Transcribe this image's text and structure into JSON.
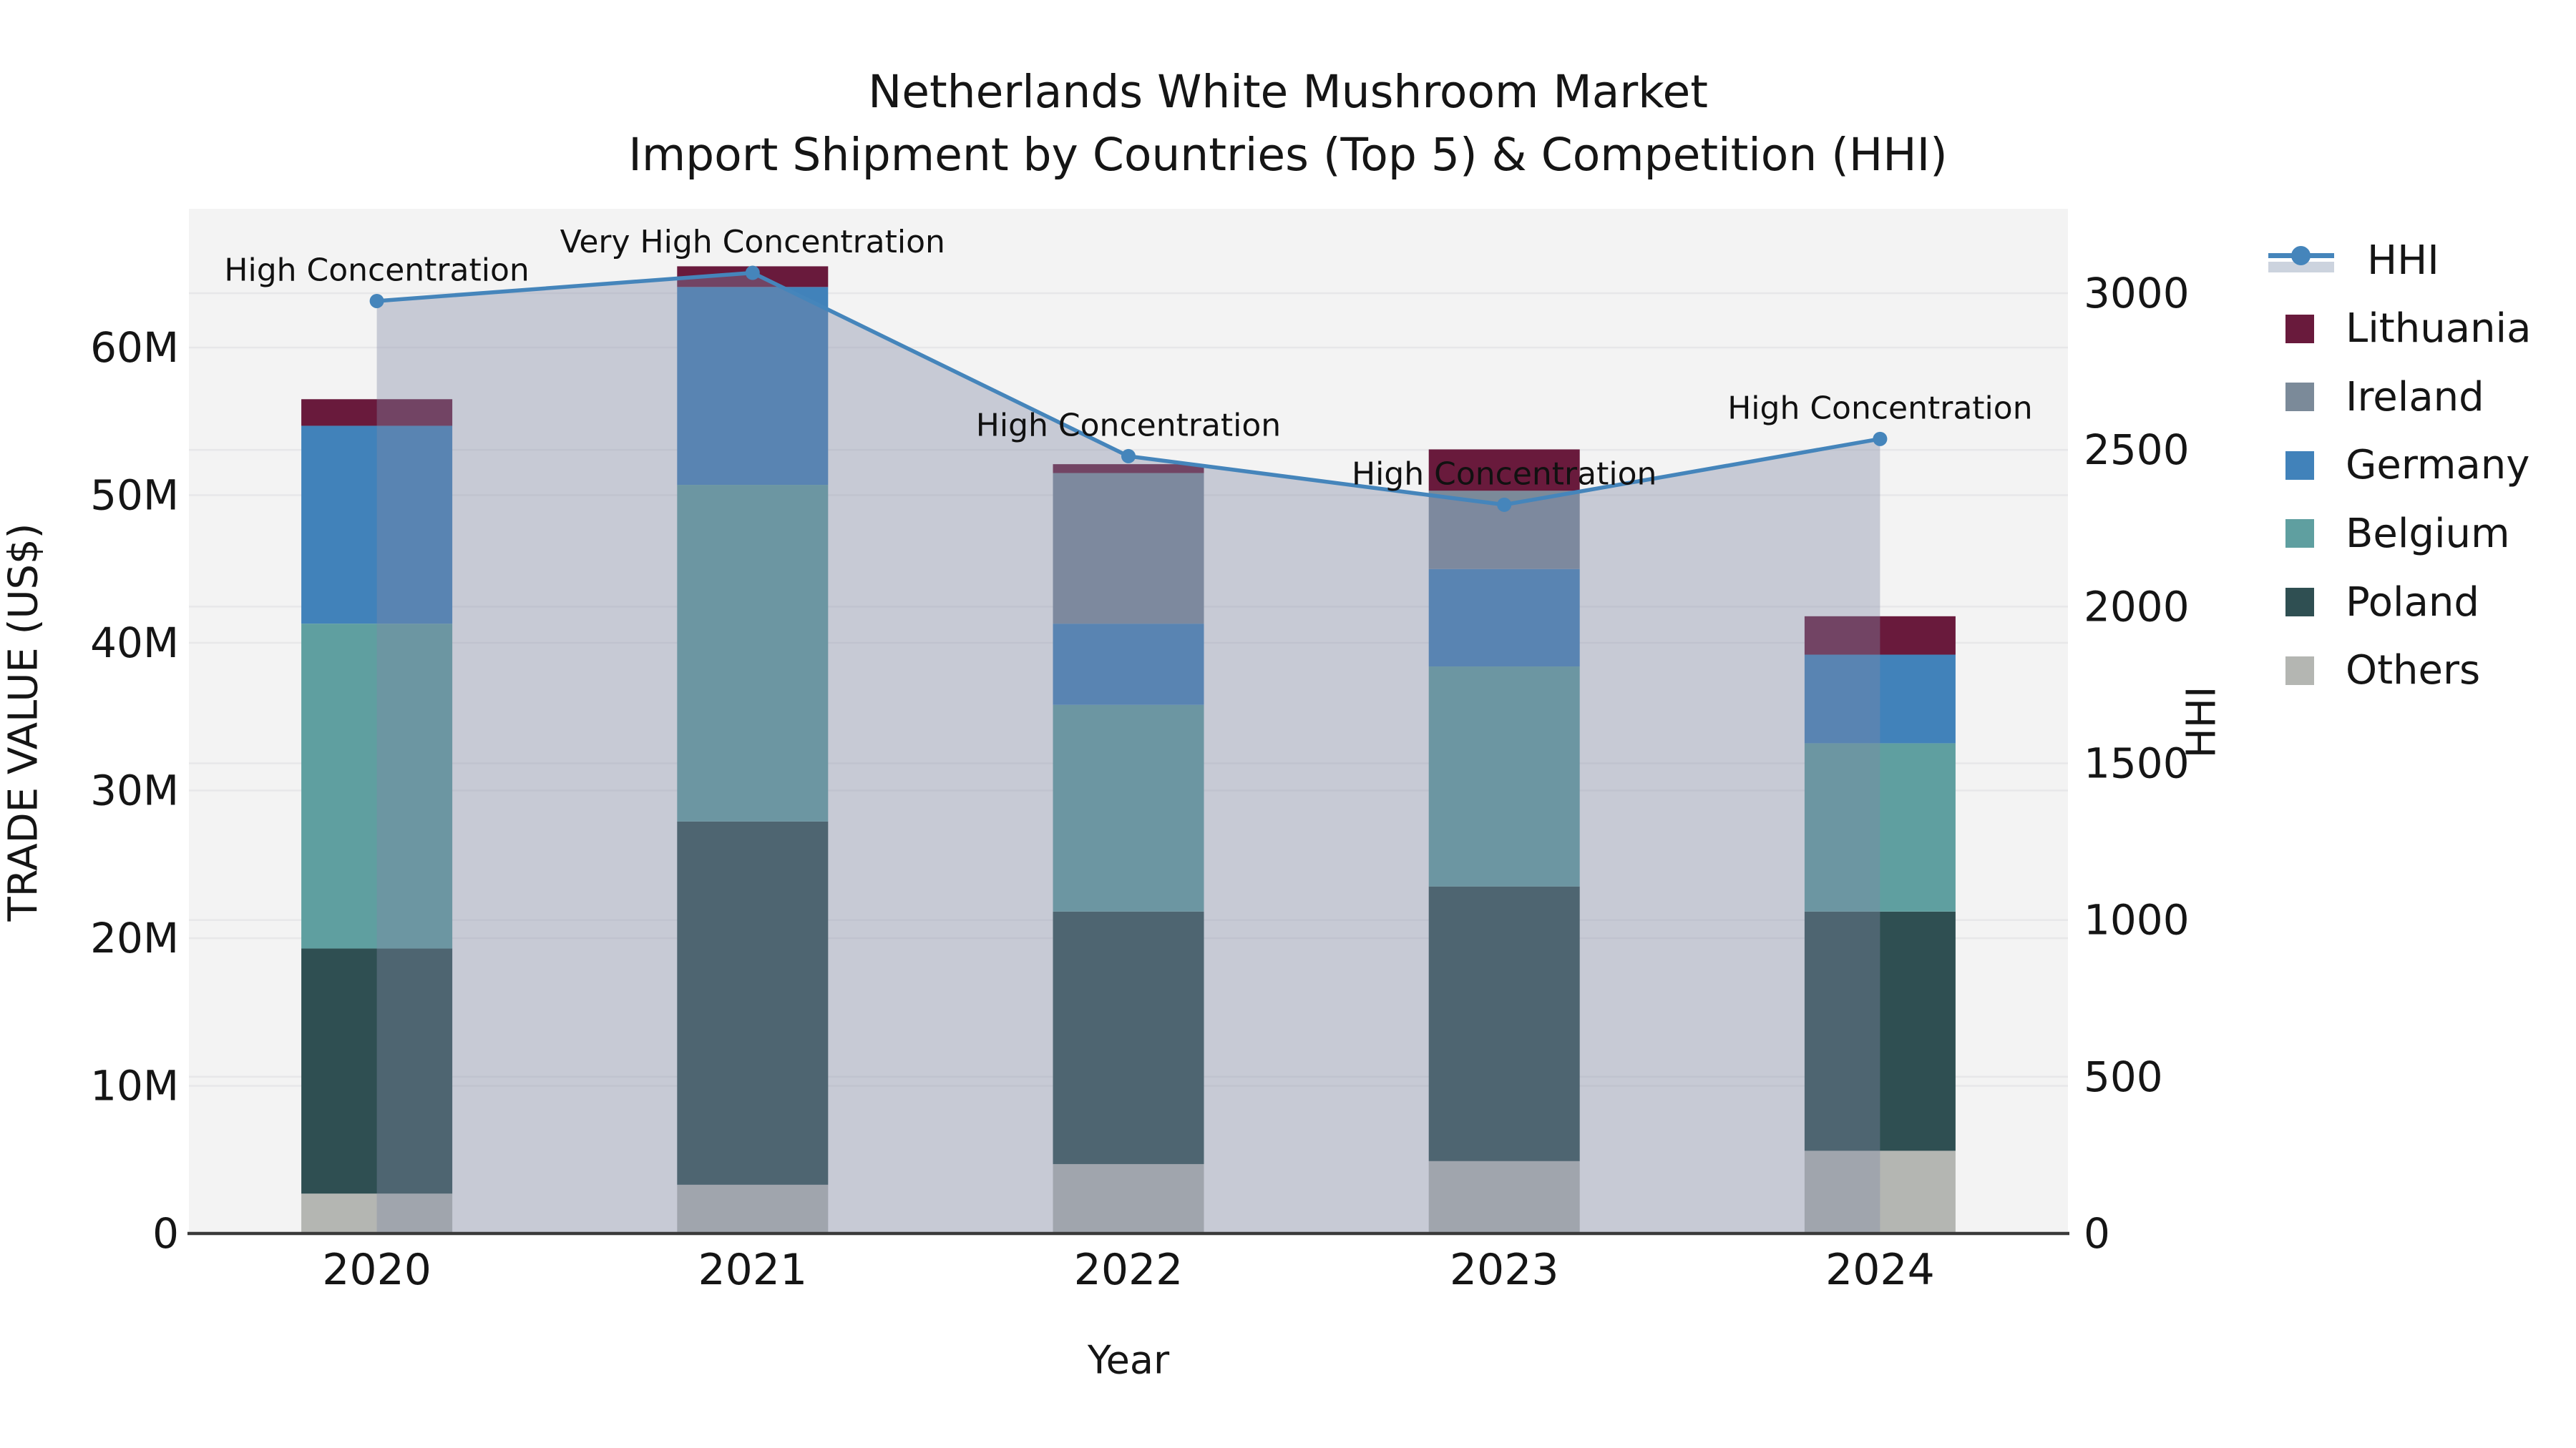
{
  "title": {
    "line1": "Netherlands White Mushroom Market",
    "line2": "Import Shipment by Countries (Top 5) & Competition (HHI)"
  },
  "axes": {
    "y_left": {
      "label": "TRADE VALUE (US$)",
      "ticks": [
        "0",
        "10M",
        "20M",
        "30M",
        "40M",
        "50M",
        "60M"
      ],
      "tick_values": [
        0,
        10,
        20,
        30,
        40,
        50,
        60
      ]
    },
    "y_right": {
      "label": "HHI",
      "ticks": [
        "0",
        "500",
        "1000",
        "1500",
        "2000",
        "2500",
        "3000"
      ],
      "tick_values": [
        0,
        500,
        1000,
        1500,
        2000,
        2500,
        3000
      ]
    },
    "x": {
      "label": "Year"
    }
  },
  "legend": {
    "items": [
      {
        "label": "HHI",
        "type": "line",
        "color": "#4585bb",
        "band_color": "#ccd3de"
      },
      {
        "label": "Lithuania",
        "type": "square",
        "color": "#691a3c"
      },
      {
        "label": "Ireland",
        "type": "square",
        "color": "#7b8a99"
      },
      {
        "label": "Germany",
        "type": "square",
        "color": "#4182ba"
      },
      {
        "label": "Belgium",
        "type": "square",
        "color": "#5f9fa0"
      },
      {
        "label": "Poland",
        "type": "square",
        "color": "#2f4f52"
      },
      {
        "label": "Others",
        "type": "square",
        "color": "#b4b6b2"
      }
    ]
  },
  "chart_data": {
    "type": "bar",
    "subtype": "stacked-bars-with-line-area",
    "categories": [
      "2020",
      "2021",
      "2022",
      "2023",
      "2024"
    ],
    "series": [
      {
        "name": "Others",
        "color": "#b4b6b2",
        "values": [
          2.7,
          3.3,
          4.7,
          4.9,
          5.6
        ]
      },
      {
        "name": "Poland",
        "color": "#2f4f52",
        "values": [
          16.6,
          24.6,
          17.1,
          18.6,
          16.2
        ]
      },
      {
        "name": "Belgium",
        "color": "#5f9fa0",
        "values": [
          22.0,
          22.8,
          14.0,
          14.9,
          11.4
        ]
      },
      {
        "name": "Germany",
        "color": "#4182ba",
        "values": [
          13.4,
          13.4,
          5.5,
          6.6,
          6.0
        ]
      },
      {
        "name": "Ireland",
        "color": "#7b8a99",
        "values": [
          0,
          0,
          10.2,
          5.3,
          0
        ]
      },
      {
        "name": "Lithuania",
        "color": "#691a3c",
        "values": [
          1.8,
          1.4,
          0.6,
          2.8,
          2.6
        ]
      }
    ],
    "bar_totals": [
      56.5,
      65.5,
      52.1,
      53.1,
      41.8
    ],
    "line_series": {
      "name": "HHI",
      "color": "#4585bb",
      "area_overlay_color": "rgba(128,138,165,0.38)",
      "values": [
        2975,
        3065,
        2480,
        2325,
        2535
      ]
    },
    "annotations": [
      {
        "category": "2020",
        "label": "High Concentration"
      },
      {
        "category": "2021",
        "label": "Very High Concentration"
      },
      {
        "category": "2022",
        "label": "High Concentration"
      },
      {
        "category": "2023",
        "label": "High Concentration"
      },
      {
        "category": "2024",
        "label": "High Concentration"
      }
    ],
    "title": "Netherlands White Mushroom Market — Import Shipment by Countries (Top 5) & Competition (HHI)",
    "xlabel": "Year",
    "ylabel_left": "TRADE VALUE (US$)",
    "ylabel_right": "HHI",
    "ylim_left": [
      0,
      69.4
    ],
    "ylim_right": [
      0,
      3000
    ],
    "grid": true,
    "legend_position": "right"
  },
  "style": {
    "figure_bg": "#ffffff",
    "plot_bg": "#f3f3f3",
    "gridline_color": "#e7e7e9",
    "axisline_color": "#3a3a3a",
    "text_color": "#151515"
  }
}
